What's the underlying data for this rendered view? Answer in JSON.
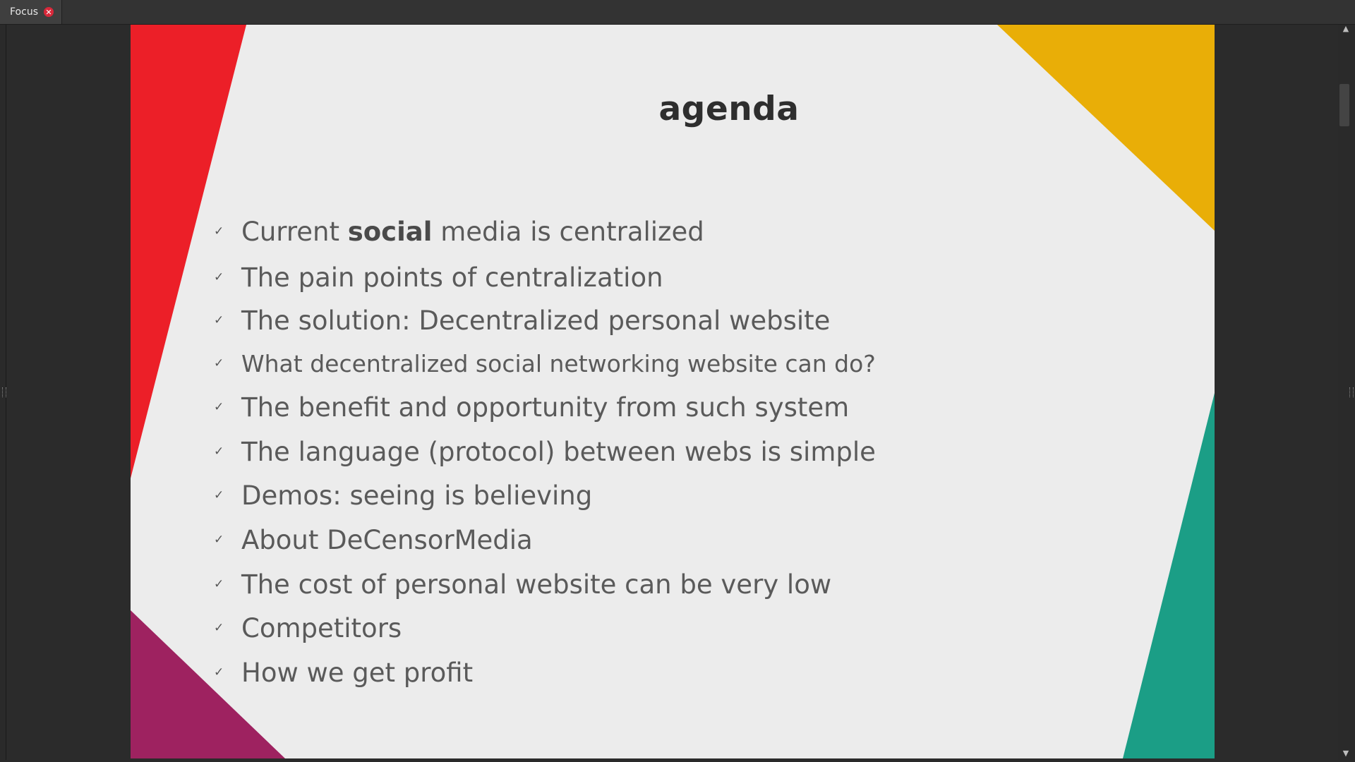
{
  "tabs": [
    {
      "label": "Focus",
      "close_icon": "close-icon"
    }
  ],
  "slide": {
    "title": "agenda",
    "colors": {
      "background": "#ececec",
      "red": "#ec1f28",
      "yellow": "#e9ae07",
      "teal": "#1b9e86",
      "purple": "#9e2260",
      "title": "#2e2e2e",
      "text": "#5a5a5a"
    },
    "bullet_icon": "checkmark-icon",
    "items": [
      {
        "pre": "Current ",
        "bold": "social",
        "post": " media is centralized"
      },
      {
        "text": "The pain points of centralization"
      },
      {
        "text": "The solution: Decentralized personal website"
      },
      {
        "text": "What decentralized social networking website can do?"
      },
      {
        "text": "The benefit and opportunity from such system"
      },
      {
        "text": "The language (protocol) between webs is simple"
      },
      {
        "text": "Demos: seeing is believing"
      },
      {
        "text": "About DeCensorMedia"
      },
      {
        "text": "The cost of personal website can be very low"
      },
      {
        "text": "Competitors"
      },
      {
        "text": "How we get profit"
      }
    ]
  }
}
